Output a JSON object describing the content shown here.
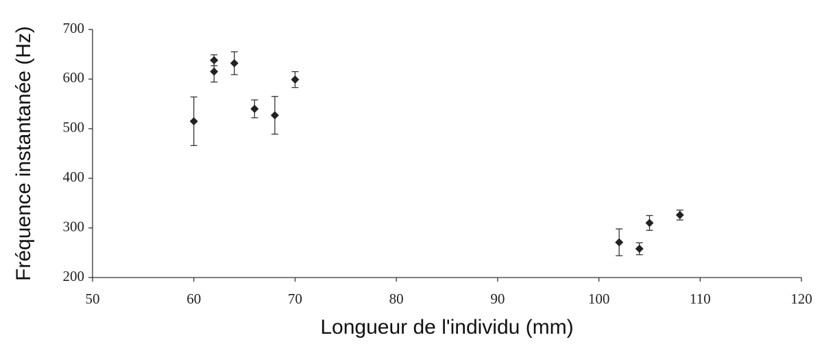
{
  "chart_data": {
    "type": "scatter",
    "x_label": "Longueur de l'individu (mm)",
    "y_label": "Fréquence instantanée (Hz)",
    "x": [
      60,
      62,
      62,
      64,
      66,
      68,
      70,
      102,
      104,
      105,
      108
    ],
    "values": [
      515,
      638,
      615,
      632,
      540,
      527,
      599,
      271,
      258,
      310,
      326
    ],
    "errors": [
      49,
      11,
      21,
      23,
      18,
      38,
      16,
      27,
      12,
      15,
      10
    ],
    "color": "#222222",
    "xlim": [
      50,
      120
    ],
    "xticks": [
      50,
      60,
      70,
      80,
      90,
      100,
      110,
      120
    ],
    "ylim": [
      200,
      700
    ],
    "yticks": [
      200,
      300,
      400,
      500,
      600,
      700
    ],
    "grid": false
  }
}
